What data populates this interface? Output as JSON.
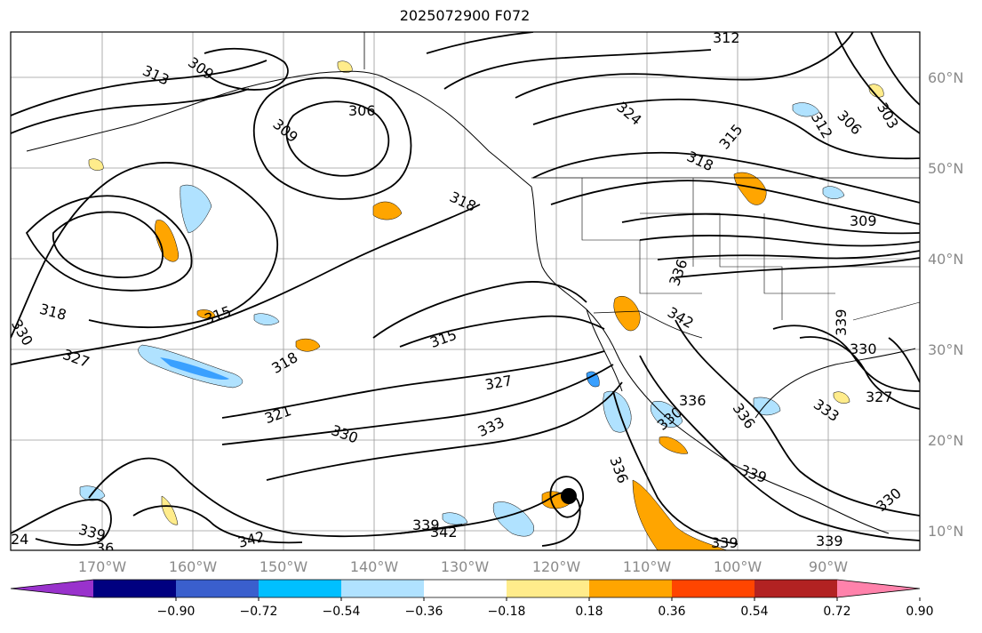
{
  "title": "2025072900 F072",
  "lon_labels": [
    "170°W",
    "160°W",
    "150°W",
    "140°W",
    "130°W",
    "120°W",
    "110°W",
    "100°W",
    "90°W"
  ],
  "lat_labels": [
    "60°N",
    "50°N",
    "40°N",
    "30°N",
    "20°N",
    "10°N"
  ],
  "contour_labels": [
    {
      "t": "313"
    },
    {
      "t": "309"
    },
    {
      "t": "306"
    },
    {
      "t": "309"
    },
    {
      "t": "318"
    },
    {
      "t": "312"
    },
    {
      "t": "324"
    },
    {
      "t": "315"
    },
    {
      "t": "318"
    },
    {
      "t": "312"
    },
    {
      "t": "306"
    },
    {
      "t": "303"
    },
    {
      "t": "309"
    },
    {
      "t": "336"
    },
    {
      "t": "342"
    },
    {
      "t": "339"
    },
    {
      "t": "330"
    },
    {
      "t": "327"
    },
    {
      "t": "315"
    },
    {
      "t": "315"
    },
    {
      "t": "318"
    },
    {
      "t": "327"
    },
    {
      "t": "321"
    },
    {
      "t": "333"
    },
    {
      "t": "330"
    },
    {
      "t": "336"
    },
    {
      "t": "336"
    },
    {
      "t": "336"
    },
    {
      "t": "333"
    },
    {
      "t": "339"
    },
    {
      "t": "330"
    },
    {
      "t": "339"
    },
    {
      "t": "342"
    },
    {
      "t": "342"
    },
    {
      "t": "339"
    },
    {
      "t": "339"
    },
    {
      "t": "318"
    },
    {
      "t": "330"
    },
    {
      "t": "327"
    },
    {
      "t": "339"
    },
    {
      "t": "330"
    },
    {
      "t": "24"
    },
    {
      "t": "36"
    }
  ],
  "colorbar": {
    "colors": [
      "#9932cc",
      "#000080",
      "#3a5fcd",
      "#00bfff",
      "#b0e2ff",
      "#ffffff",
      "#ffec8b",
      "#ffa500",
      "#ff4500",
      "#b22222",
      "#ff82ab"
    ],
    "ticks": [
      "−0.90",
      "−0.72",
      "−0.54",
      "−0.36",
      "−0.18",
      "0.18",
      "0.36",
      "0.54",
      "0.72",
      "0.90"
    ]
  },
  "marker": {
    "name": "storm-center",
    "color": "#000000"
  }
}
